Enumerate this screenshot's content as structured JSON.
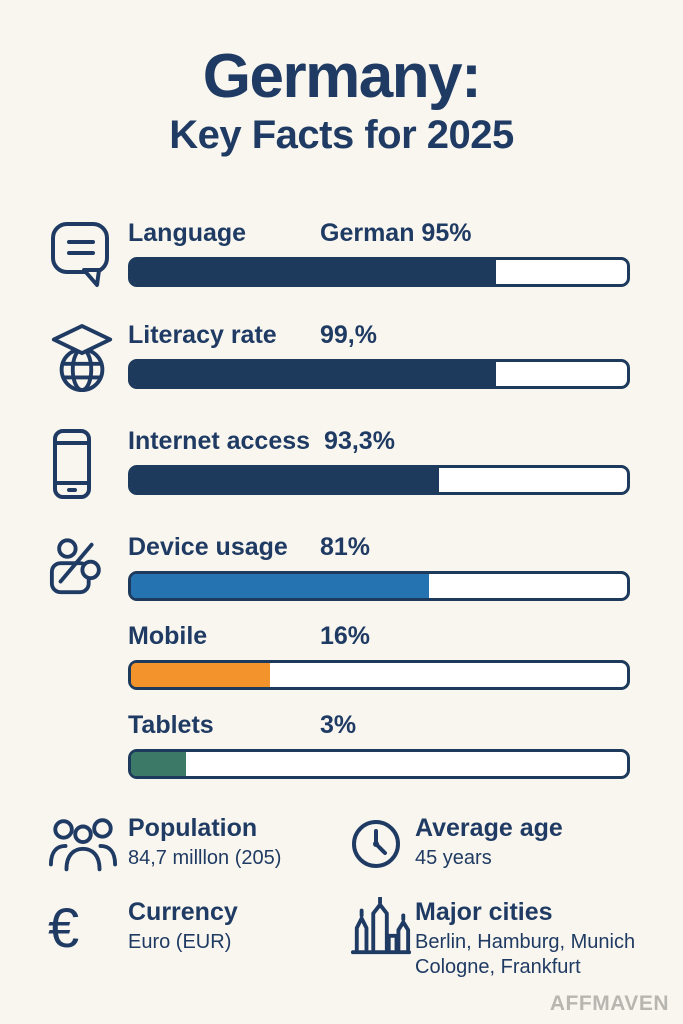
{
  "colors": {
    "background": "#f8f6ef",
    "navy_text": "#203b63",
    "bar_navy": "#1d3a5c",
    "bar_blue": "#2673b2",
    "bar_orange": "#f2932b",
    "bar_green": "#3c7a67",
    "watermark_gray": "#b8b6b1"
  },
  "header": {
    "title": "Germany:",
    "subtitle": "Key Facts for 2025"
  },
  "chart_data": {
    "type": "bar",
    "title": "Germany: Key Facts for 2025",
    "xlim": [
      0,
      100
    ],
    "items": [
      {
        "label": "Language",
        "value_label": "German 95%",
        "value_num": 95,
        "fill_pct": 73.5,
        "color": "#1d3a5c",
        "icon": "speech-bubble-icon"
      },
      {
        "label": "Literacy rate",
        "value_label": "99,%",
        "value_num": 99,
        "fill_pct": 73.5,
        "color": "#1d3a5c",
        "icon": "graduation-cap-globe-icon"
      },
      {
        "label": "Internet access",
        "value_label": "93,3%",
        "value_num": 93.3,
        "fill_pct": 62,
        "color": "#1d3a5c",
        "icon": "smartphone-icon"
      },
      {
        "label": "Device usage",
        "value_label": "81%",
        "value_num": 81,
        "fill_pct": 60,
        "color": "#2673b2",
        "icon": "percent-tag-icon"
      },
      {
        "label": "Mobile",
        "value_label": "16%",
        "value_num": 16,
        "fill_pct": 28,
        "color": "#f2932b",
        "icon": null
      },
      {
        "label": "Tablets",
        "value_label": "3%",
        "value_num": 3,
        "fill_pct": 11,
        "color": "#3c7a67",
        "icon": null
      }
    ]
  },
  "facts": [
    {
      "title": "Population",
      "value": "84,7 milllon (205)",
      "icon": "people-icon"
    },
    {
      "title": "Average age",
      "value": "45 years",
      "icon": "clock-icon"
    },
    {
      "title": "Currency",
      "value": "Euro (EUR)",
      "icon": "euro-icon",
      "icon_glyph": "€"
    },
    {
      "title": "Major cities",
      "value": "Berlin, Hamburg, Munich Cologne, Frankfurt",
      "icon": "city-skyline-icon"
    }
  ],
  "watermark": "AFFMAVEN"
}
